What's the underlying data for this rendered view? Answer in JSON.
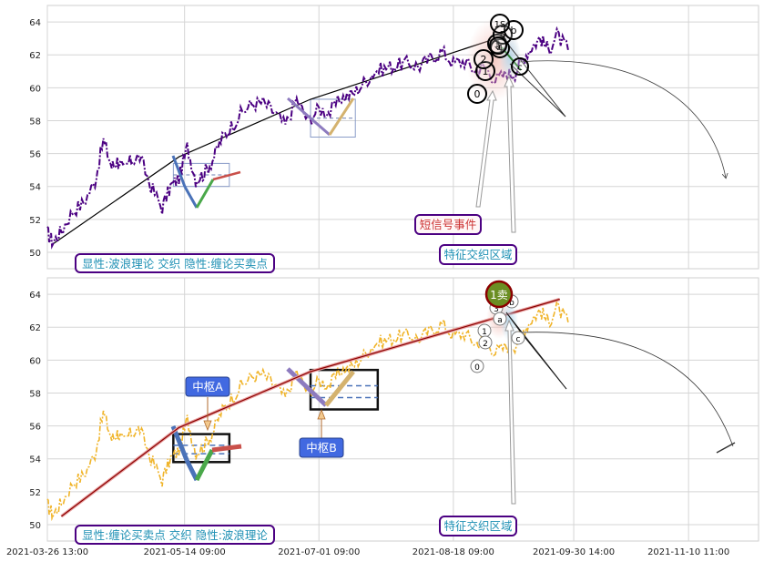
{
  "chart_data": [
    {
      "type": "line",
      "panel": "top",
      "ylim": [
        49,
        65
      ],
      "yticks": [
        "50",
        "52",
        "54",
        "56",
        "58",
        "60",
        "62",
        "64"
      ],
      "grid": true,
      "series": [
        {
          "role": "price",
          "color": "#4b0082",
          "x": [
            "2021-03-26",
            "2021-03-28",
            "2021-03-31",
            "2021-04-04",
            "2021-04-08",
            "2021-04-12",
            "2021-04-15",
            "2021-04-18",
            "2021-04-20",
            "2021-04-22",
            "2021-04-25",
            "2021-04-28",
            "2021-05-02",
            "2021-05-06",
            "2021-05-09",
            "2021-05-12",
            "2021-05-15",
            "2021-05-18",
            "2021-05-21",
            "2021-05-24",
            "2021-05-27",
            "2021-05-30",
            "2021-06-03",
            "2021-06-07",
            "2021-06-11",
            "2021-06-15",
            "2021-06-19",
            "2021-06-23",
            "2021-06-27",
            "2021-07-01",
            "2021-07-05",
            "2021-07-09",
            "2021-07-13",
            "2021-07-17",
            "2021-07-21",
            "2021-07-25",
            "2021-07-29",
            "2021-08-02",
            "2021-08-06",
            "2021-08-10",
            "2021-08-14",
            "2021-08-18",
            "2021-08-22",
            "2021-08-26",
            "2021-08-29",
            "2021-09-02",
            "2021-09-06",
            "2021-09-09",
            "2021-09-12",
            "2021-09-15",
            "2021-09-18",
            "2021-09-21",
            "2021-09-24",
            "2021-09-28"
          ],
          "values": [
            51.2,
            50.6,
            51.3,
            52.5,
            53.0,
            54.3,
            56.8,
            55.2,
            55.6,
            55.0,
            55.6,
            55.8,
            54.0,
            52.7,
            54.0,
            54.5,
            56.4,
            54.4,
            54.8,
            55.6,
            56.8,
            57.5,
            58.4,
            59.0,
            59.1,
            58.5,
            57.7,
            59.3,
            58.0,
            58.7,
            58.5,
            59.4,
            59.6,
            60.3,
            61.0,
            61.2,
            61.4,
            61.5,
            61.3,
            61.8,
            62.2,
            61.5,
            61.6,
            61.0,
            61.3,
            60.5,
            60.8,
            60.9,
            61.8,
            62.5,
            63.0,
            62.3,
            63.2,
            62.3
          ]
        },
        {
          "role": "trend-line",
          "color": "#000000",
          "x": [
            "2021-03-28",
            "2021-05-12",
            "2021-06-28",
            "2021-09-06"
          ],
          "values": [
            50.5,
            55.8,
            59.3,
            63.2
          ]
        }
      ],
      "pivots": [
        {
          "x": [
            "2021-05-10",
            "2021-05-30"
          ],
          "y": [
            54.0,
            55.4
          ]
        },
        {
          "x": [
            "2021-06-28",
            "2021-07-14"
          ],
          "y": [
            57.0,
            59.3
          ]
        }
      ],
      "wave_labels": [
        "0",
        "1",
        "2",
        "3",
        "4",
        "5",
        "a",
        "b",
        "c",
        "1S"
      ],
      "annotations": [
        {
          "text": "短信号事件",
          "color": "#cc3333"
        },
        {
          "text": "特征交织区域",
          "color": "#1e90b4"
        }
      ],
      "legend": "显性:波浪理论 交织 隐性:缠论买卖点"
    },
    {
      "type": "line",
      "panel": "bottom",
      "ylim": [
        49,
        65
      ],
      "yticks": [
        "50",
        "52",
        "54",
        "56",
        "58",
        "60",
        "62",
        "64"
      ],
      "grid": true,
      "xlabels": [
        "2021-03-26 13:00",
        "2021-05-14 09:00",
        "2021-07-01 09:00",
        "2021-08-18 09:00",
        "2021-09-30 14:00",
        "2021-11-10 11:00"
      ],
      "series": [
        {
          "role": "price",
          "color": "#f0b429",
          "x": [
            "2021-03-26",
            "2021-03-28",
            "2021-03-31",
            "2021-04-04",
            "2021-04-08",
            "2021-04-12",
            "2021-04-15",
            "2021-04-18",
            "2021-04-20",
            "2021-04-22",
            "2021-04-25",
            "2021-04-28",
            "2021-05-02",
            "2021-05-06",
            "2021-05-09",
            "2021-05-12",
            "2021-05-15",
            "2021-05-18",
            "2021-05-21",
            "2021-05-24",
            "2021-05-27",
            "2021-05-30",
            "2021-06-03",
            "2021-06-07",
            "2021-06-11",
            "2021-06-15",
            "2021-06-19",
            "2021-06-23",
            "2021-06-27",
            "2021-07-01",
            "2021-07-05",
            "2021-07-09",
            "2021-07-13",
            "2021-07-17",
            "2021-07-21",
            "2021-07-25",
            "2021-07-29",
            "2021-08-02",
            "2021-08-06",
            "2021-08-10",
            "2021-08-14",
            "2021-08-18",
            "2021-08-22",
            "2021-08-26",
            "2021-08-29",
            "2021-09-02",
            "2021-09-06",
            "2021-09-09",
            "2021-09-12",
            "2021-09-15",
            "2021-09-18",
            "2021-09-21",
            "2021-09-24",
            "2021-09-28"
          ],
          "values": [
            51.2,
            50.6,
            51.3,
            52.5,
            53.0,
            54.3,
            56.8,
            55.2,
            55.6,
            55.0,
            55.6,
            55.8,
            54.0,
            52.7,
            54.0,
            54.5,
            56.4,
            54.4,
            54.8,
            55.6,
            56.8,
            57.5,
            58.4,
            59.0,
            59.1,
            58.5,
            57.7,
            59.3,
            58.0,
            58.7,
            58.5,
            59.4,
            59.6,
            60.3,
            61.0,
            61.2,
            61.4,
            61.5,
            61.3,
            61.8,
            62.2,
            61.5,
            61.6,
            61.0,
            61.3,
            60.5,
            60.8,
            60.9,
            61.8,
            62.5,
            63.0,
            62.3,
            63.2,
            62.3
          ]
        },
        {
          "role": "stroke-line",
          "color": "#8b0000",
          "x": [
            "2021-03-31",
            "2021-05-12",
            "2021-06-28",
            "2021-09-25"
          ],
          "values": [
            50.5,
            55.9,
            59.3,
            63.7
          ]
        }
      ],
      "pivots": [
        {
          "label": "中枢A",
          "x": [
            "2021-05-10",
            "2021-05-30"
          ],
          "y": [
            53.8,
            55.5
          ]
        },
        {
          "label": "中枢B",
          "x": [
            "2021-06-28",
            "2021-07-22"
          ],
          "y": [
            57.0,
            59.4
          ]
        }
      ],
      "wave_labels": [
        "0",
        "1",
        "2",
        "3",
        "a",
        "b",
        "c"
      ],
      "signal": "1卖",
      "annotations": [
        {
          "text": "特征交织区域",
          "color": "#1e90b4"
        }
      ],
      "legend": "显性:缠论买卖点 交织 隐性:波浪理论"
    }
  ]
}
